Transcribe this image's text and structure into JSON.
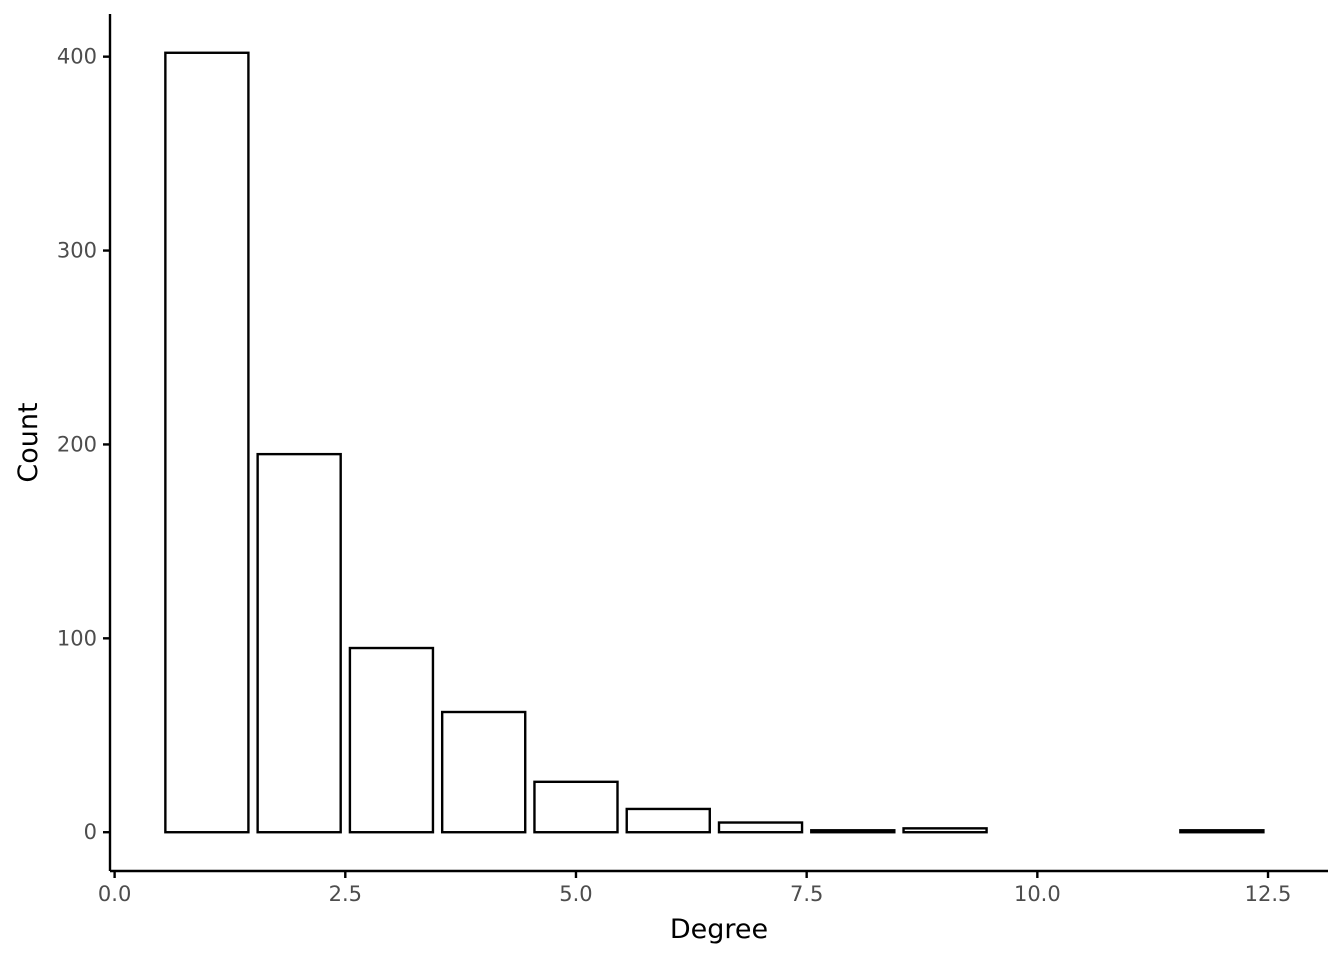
{
  "chart_data": {
    "type": "bar",
    "title": "",
    "xlabel": "Degree",
    "ylabel": "Count",
    "x": [
      1,
      2,
      3,
      4,
      5,
      6,
      7,
      8,
      9,
      12
    ],
    "values": [
      402,
      195,
      95,
      62,
      26,
      12,
      5,
      1,
      2,
      1
    ],
    "bar_width": 0.9,
    "xlim": [
      -0.05,
      13.15
    ],
    "ylim": [
      -20,
      422
    ],
    "x_ticks": [
      0,
      2.5,
      5,
      7.5,
      10,
      12.5
    ],
    "x_tick_labels": [
      "0.0",
      "2.5",
      "5.0",
      "7.5",
      "10.0",
      "12.5"
    ],
    "y_ticks": [
      0,
      100,
      200,
      300,
      400
    ],
    "y_tick_labels": [
      "0",
      "100",
      "200",
      "300",
      "400"
    ],
    "grid": false,
    "legend": "none",
    "colors": {
      "bar_fill": "#ffffff",
      "bar_stroke": "#000000",
      "tick_text": "#4d4d4d"
    }
  }
}
